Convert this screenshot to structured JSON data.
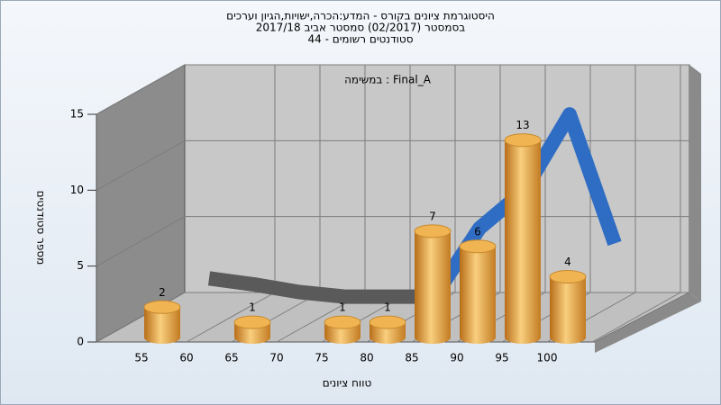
{
  "chart_data": {
    "type": "bar",
    "title_lines": [
      "היסטוגרמת ציונים בקורס - המדע:הכרה,ישויות,הגיון וערכים",
      "בסמסטר  (02/2017)  סמסטר אביב 2017/18",
      "סטודנטים רשומים - 44"
    ],
    "subtitle": "במשימה : Final_A",
    "x_label": "טווח ציונים",
    "y_label": "מספר סטודנטים",
    "categories": [
      "55",
      "60",
      "65",
      "70",
      "75",
      "80",
      "85",
      "90",
      "95",
      "100"
    ],
    "values": [
      2,
      0,
      1,
      0,
      1,
      1,
      7,
      6,
      13,
      4
    ],
    "color": "#e8a23c",
    "curve": {
      "values": [
        1.7,
        1.3,
        0.8,
        0.5,
        0.5,
        0.5,
        5,
        7.5,
        12.5,
        4
      ],
      "colors": [
        "#5a5a5a",
        "#5a5a5a",
        "#5a5a5a",
        "#5a5a5a",
        "#5a5a5a",
        "#2f6dc4",
        "#2f6dc4",
        "#2f6dc4",
        "#2f6dc4",
        "#2f6dc4"
      ]
    },
    "ylim": [
      0,
      15
    ],
    "yticks": [
      0,
      5,
      10,
      15
    ],
    "grid": true
  }
}
